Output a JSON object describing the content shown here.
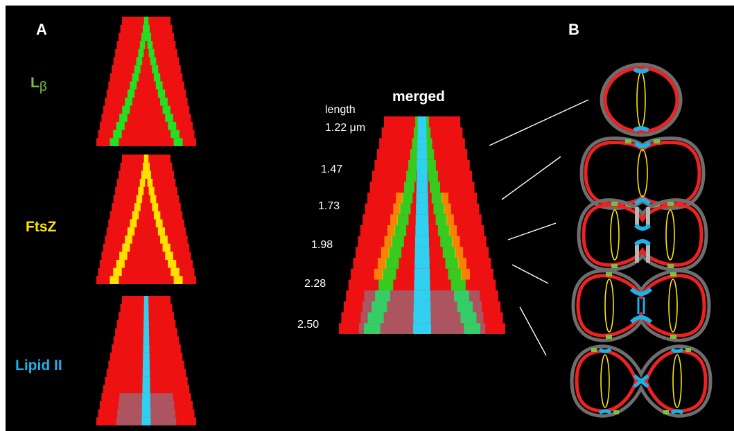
{
  "panel_a": {
    "letter": "A",
    "kymographs": [
      {
        "label_main": "L",
        "label_sub": "β",
        "color": "#7ac143",
        "signal": "#22e022",
        "pattern": "split"
      },
      {
        "label": "FtsZ",
        "color": "#ffe600",
        "signal": "#ffe100",
        "pattern": "split"
      },
      {
        "label": "Lipid II",
        "color": "#1ab2e8",
        "signal": "#30d0f0",
        "pattern": "center"
      }
    ]
  },
  "merged": {
    "title": "merged",
    "length_header": "length",
    "unit": "μm",
    "lengths": [
      "1.22",
      "1.47",
      "1.73",
      "1.98",
      "2.28",
      "2.50"
    ]
  },
  "panel_b": {
    "letter": "B",
    "stages": [
      1,
      2,
      3,
      4,
      5
    ]
  },
  "colors": {
    "background": "#000000",
    "membrane": "#ee2222",
    "wall": "#6e6e6e",
    "septum": "#1ab2e8",
    "ftsz": "#ffe600",
    "lbeta": "#7ac143",
    "label_text": "#ffffff"
  }
}
